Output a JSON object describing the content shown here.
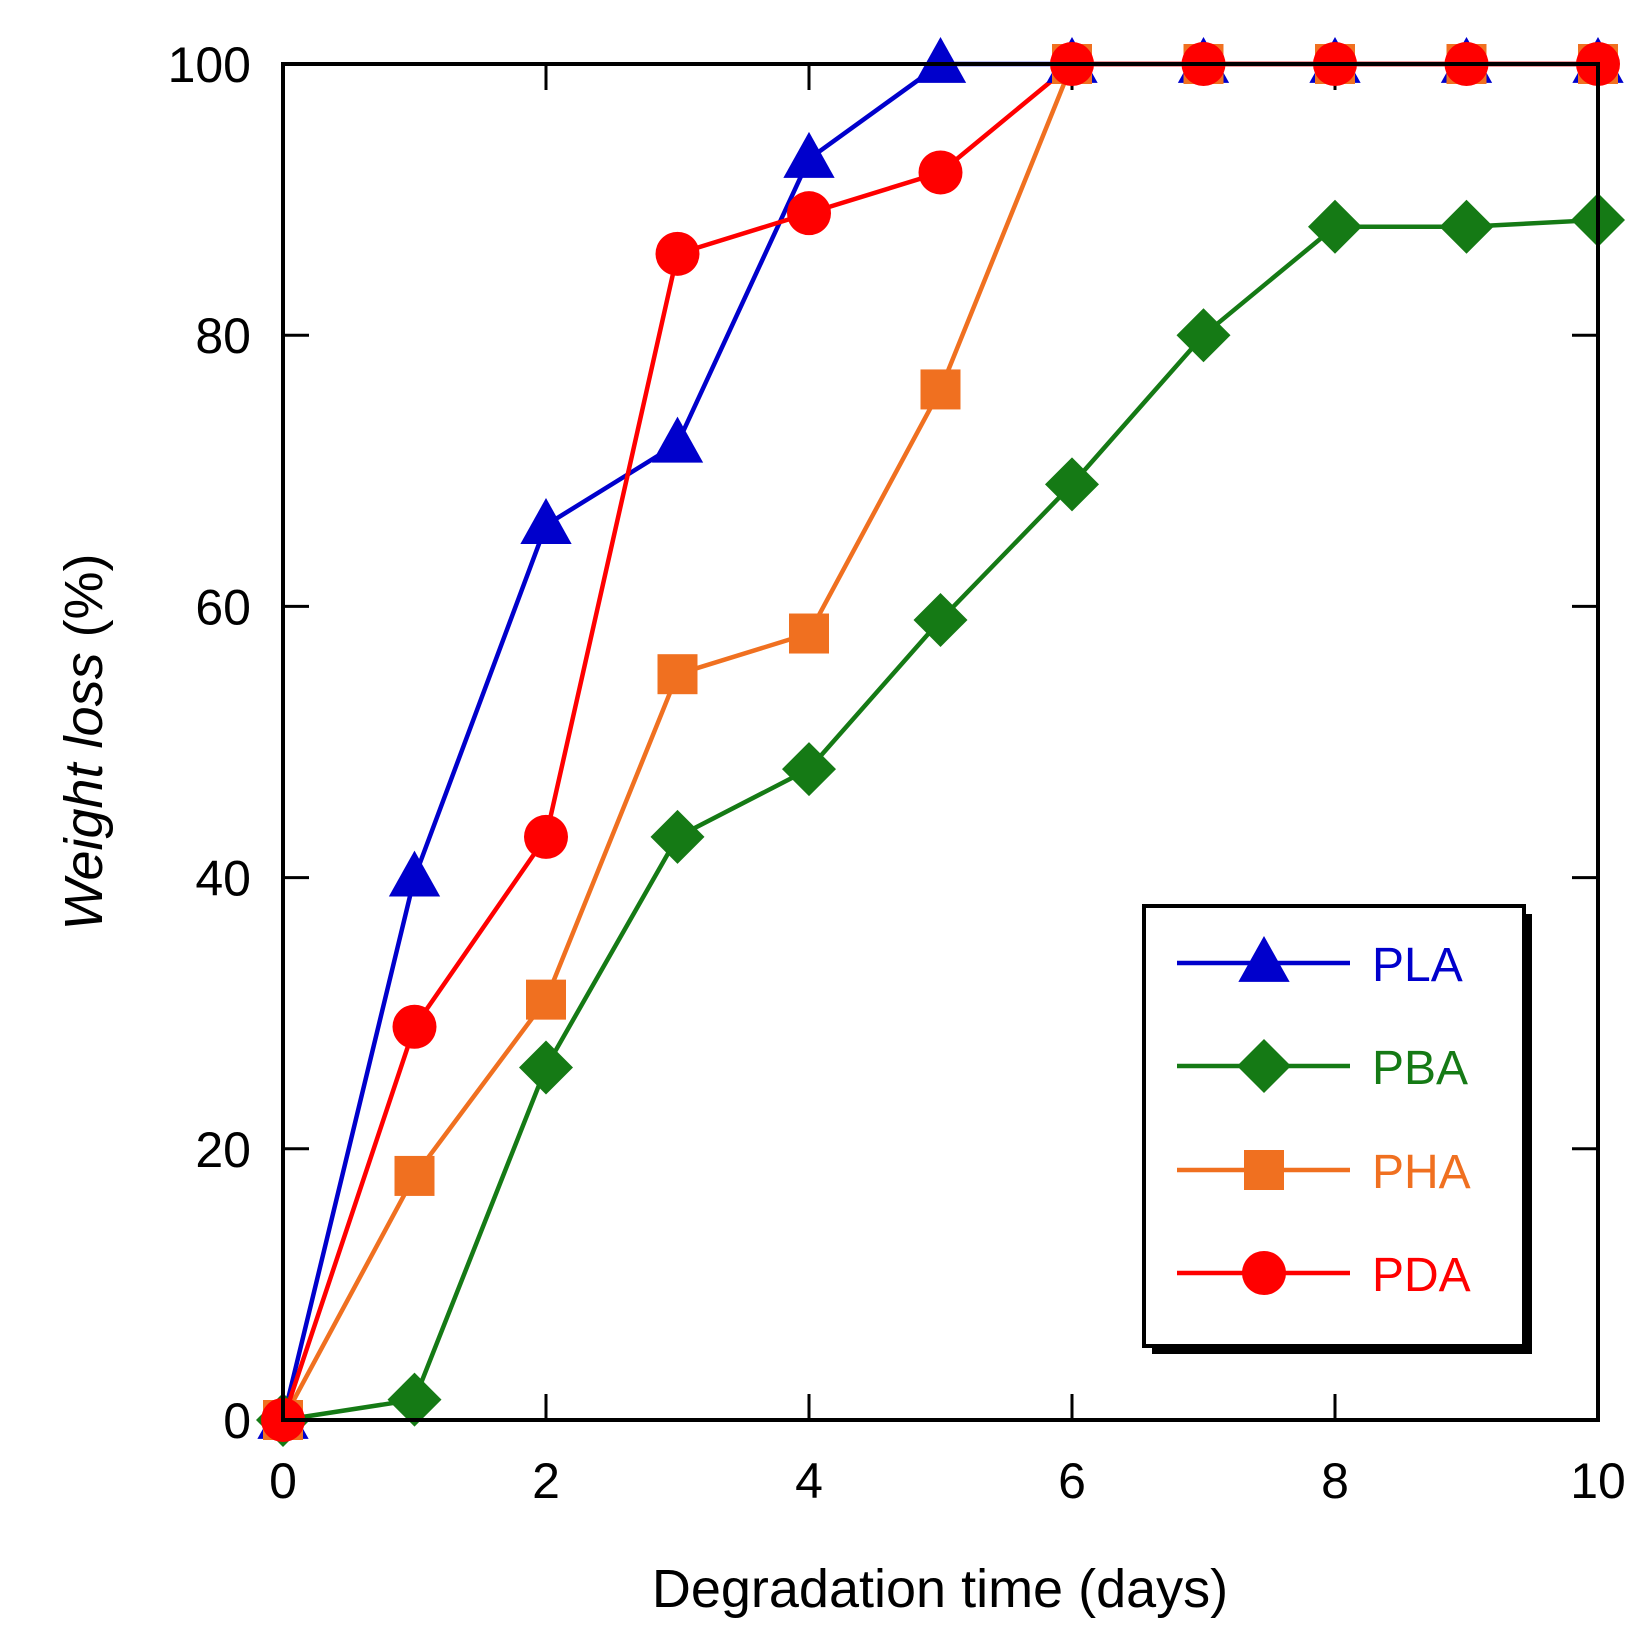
{
  "chart_data": {
    "type": "line",
    "title": "",
    "xlabel": "Degradation time (days)",
    "ylabel": "Weight loss (%)",
    "xlim": [
      0,
      10
    ],
    "ylim": [
      0,
      100
    ],
    "xticks": [
      0,
      2,
      4,
      6,
      8,
      10
    ],
    "yticks": [
      0,
      20,
      40,
      60,
      80,
      100
    ],
    "xtick_labels": [
      "0",
      "2",
      "4",
      "6",
      "8",
      "10"
    ],
    "ytick_labels": [
      "0",
      "20",
      "40",
      "60",
      "80",
      "100"
    ],
    "legend_position": "bottom-right",
    "series": [
      {
        "name": "PLA",
        "color": "#0000cc",
        "marker": "triangle",
        "x": [
          0,
          1,
          2,
          3,
          4,
          5,
          6,
          7,
          8,
          9,
          10
        ],
        "y": [
          0,
          40,
          66,
          72,
          93,
          100,
          100,
          100,
          100,
          100,
          100
        ]
      },
      {
        "name": "PBA",
        "color": "#157a15",
        "marker": "diamond",
        "x": [
          0,
          1,
          2,
          3,
          4,
          5,
          6,
          7,
          8,
          9,
          10
        ],
        "y": [
          0,
          1.5,
          26,
          43,
          48,
          59,
          69,
          80,
          88,
          88,
          88.5
        ]
      },
      {
        "name": "PHA",
        "color": "#f07020",
        "marker": "square",
        "x": [
          0,
          1,
          2,
          3,
          4,
          5,
          6,
          7,
          8,
          9,
          10
        ],
        "y": [
          0,
          18,
          31,
          55,
          58,
          76,
          100,
          100,
          100,
          100,
          100
        ]
      },
      {
        "name": "PDA",
        "color": "#ff0000",
        "marker": "circle",
        "x": [
          0,
          1,
          2,
          3,
          4,
          5,
          6,
          7,
          8,
          9,
          10
        ],
        "y": [
          0,
          29,
          43,
          86,
          89,
          92,
          100,
          100,
          100,
          100,
          100
        ]
      }
    ]
  }
}
